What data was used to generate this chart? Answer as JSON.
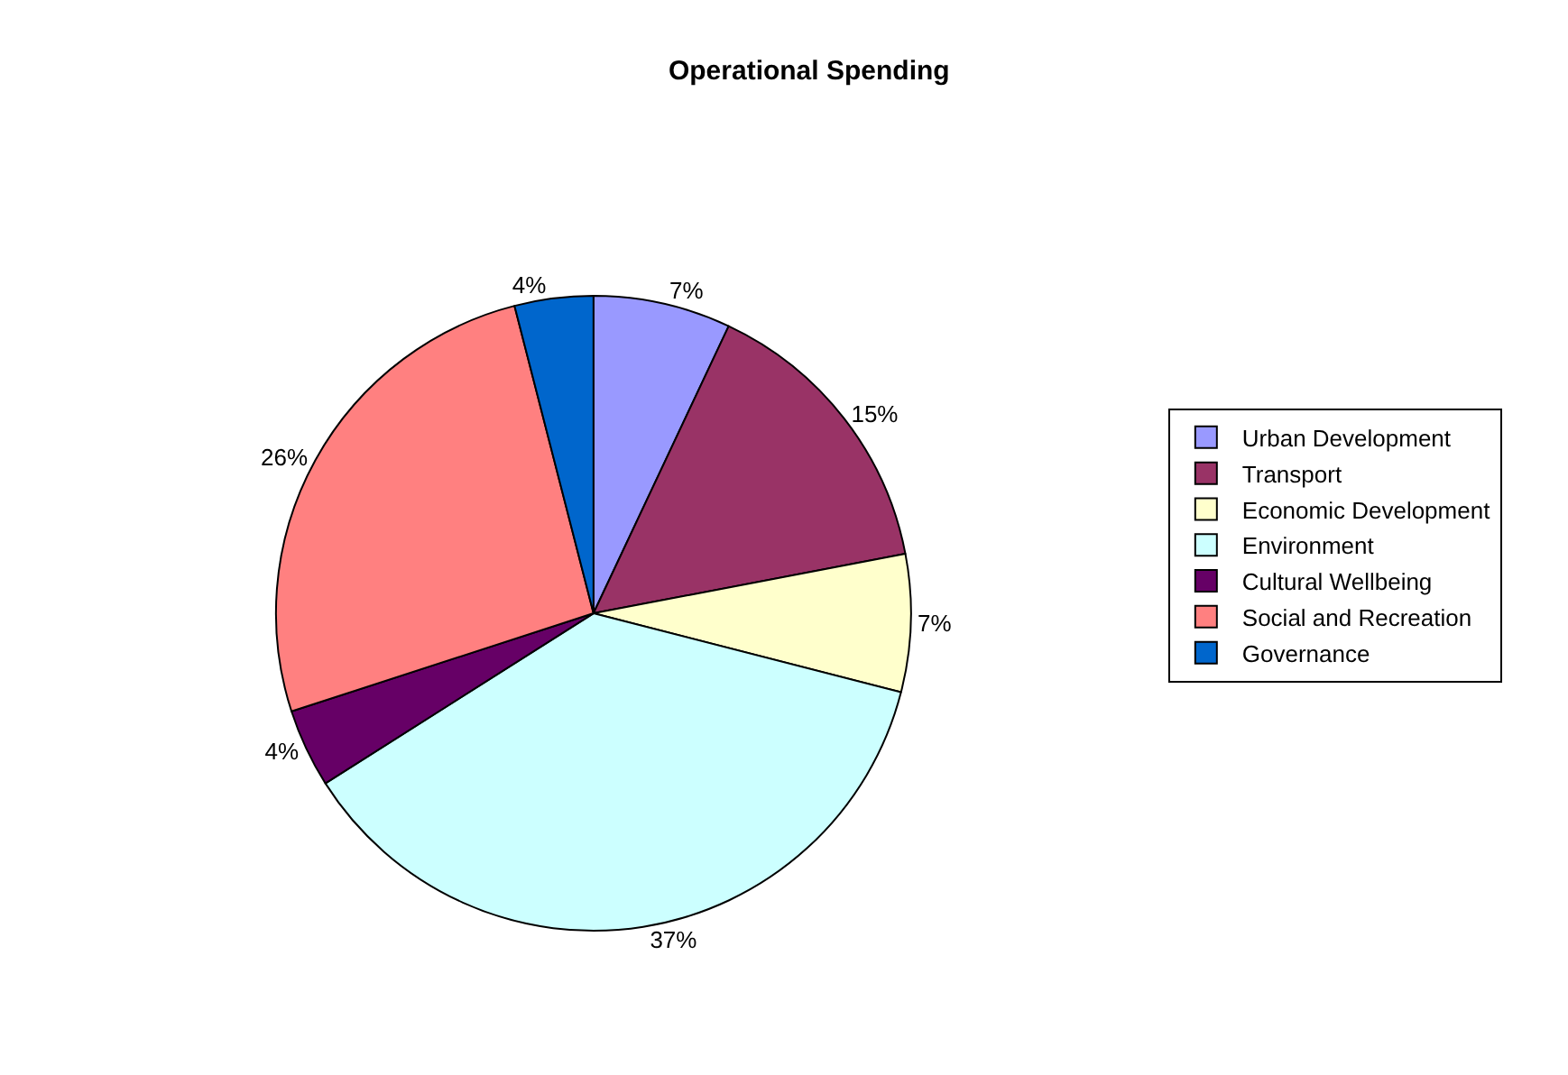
{
  "chart_data": {
    "type": "pie",
    "title": "Operational Spending",
    "categories": [
      "Urban Development",
      "Transport",
      "Economic Development",
      "Environment",
      "Cultural Wellbeing",
      "Social and Recreation",
      "Governance"
    ],
    "values": [
      7,
      15,
      7,
      37,
      4,
      26,
      4
    ],
    "value_labels": [
      "7%",
      "15%",
      "7%",
      "37%",
      "4%",
      "26%",
      "4%"
    ],
    "colors": [
      "#9999ff",
      "#993366",
      "#ffffcc",
      "#ccffff",
      "#660066",
      "#ff8080",
      "#0066cc"
    ],
    "legend": "right"
  }
}
